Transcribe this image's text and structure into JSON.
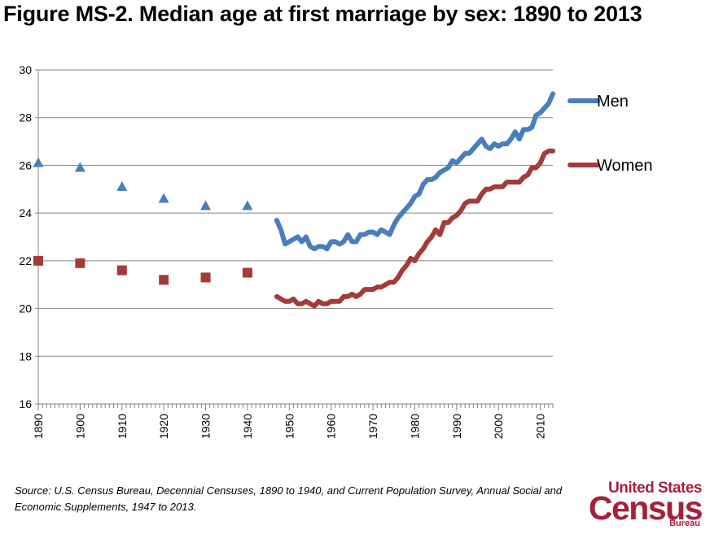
{
  "title": "Figure MS-2.  Median age at first marriage by sex:  1890 to 2013",
  "source": "Source: U.S. Census Bureau, Decennial Censuses, 1890 to 1940, and Current Population Survey, Annual Social and Economic Supplements, 1947 to 2013.",
  "logo": {
    "line1": "United States",
    "line2": "Census",
    "line3": "Bureau",
    "tm": "®"
  },
  "colors": {
    "men": "#4a7ebb",
    "women": "#a33b3b",
    "grid": "#858585",
    "axis": "#858585"
  },
  "chart_data": {
    "type": "line",
    "title": "Figure MS-2.  Median age at first marriage by sex:  1890 to 2013",
    "xlabel": "",
    "ylabel": "",
    "xlim": [
      1890,
      2013
    ],
    "ylim": [
      16,
      30
    ],
    "yticks": [
      16,
      18,
      20,
      22,
      24,
      26,
      28,
      30
    ],
    "xticks": [
      1890,
      1900,
      1910,
      1920,
      1930,
      1940,
      1950,
      1960,
      1970,
      1980,
      1990,
      2000,
      2010
    ],
    "grid": true,
    "legend": "right",
    "series": [
      {
        "name": "Men",
        "census_markers": "triangle",
        "census_points": [
          [
            1890,
            26.1
          ],
          [
            1900,
            25.9
          ],
          [
            1910,
            25.1
          ],
          [
            1920,
            24.6
          ],
          [
            1930,
            24.3
          ],
          [
            1940,
            24.3
          ]
        ],
        "survey_points": [
          [
            1947,
            23.7
          ],
          [
            1948,
            23.3
          ],
          [
            1949,
            22.7
          ],
          [
            1950,
            22.8
          ],
          [
            1951,
            22.9
          ],
          [
            1952,
            23.0
          ],
          [
            1953,
            22.8
          ],
          [
            1954,
            23.0
          ],
          [
            1955,
            22.6
          ],
          [
            1956,
            22.5
          ],
          [
            1957,
            22.6
          ],
          [
            1958,
            22.6
          ],
          [
            1959,
            22.5
          ],
          [
            1960,
            22.8
          ],
          [
            1961,
            22.8
          ],
          [
            1962,
            22.7
          ],
          [
            1963,
            22.8
          ],
          [
            1964,
            23.1
          ],
          [
            1965,
            22.8
          ],
          [
            1966,
            22.8
          ],
          [
            1967,
            23.1
          ],
          [
            1968,
            23.1
          ],
          [
            1969,
            23.2
          ],
          [
            1970,
            23.2
          ],
          [
            1971,
            23.1
          ],
          [
            1972,
            23.3
          ],
          [
            1973,
            23.2
          ],
          [
            1974,
            23.1
          ],
          [
            1975,
            23.5
          ],
          [
            1976,
            23.8
          ],
          [
            1977,
            24.0
          ],
          [
            1978,
            24.2
          ],
          [
            1979,
            24.4
          ],
          [
            1980,
            24.7
          ],
          [
            1981,
            24.8
          ],
          [
            1982,
            25.2
          ],
          [
            1983,
            25.4
          ],
          [
            1984,
            25.4
          ],
          [
            1985,
            25.5
          ],
          [
            1986,
            25.7
          ],
          [
            1987,
            25.8
          ],
          [
            1988,
            25.9
          ],
          [
            1989,
            26.2
          ],
          [
            1990,
            26.1
          ],
          [
            1991,
            26.3
          ],
          [
            1992,
            26.5
          ],
          [
            1993,
            26.5
          ],
          [
            1994,
            26.7
          ],
          [
            1995,
            26.9
          ],
          [
            1996,
            27.1
          ],
          [
            1997,
            26.8
          ],
          [
            1998,
            26.7
          ],
          [
            1999,
            26.9
          ],
          [
            2000,
            26.8
          ],
          [
            2001,
            26.9
          ],
          [
            2002,
            26.9
          ],
          [
            2003,
            27.1
          ],
          [
            2004,
            27.4
          ],
          [
            2005,
            27.1
          ],
          [
            2006,
            27.5
          ],
          [
            2007,
            27.5
          ],
          [
            2008,
            27.6
          ],
          [
            2009,
            28.1
          ],
          [
            2010,
            28.2
          ],
          [
            2011,
            28.4
          ],
          [
            2012,
            28.6
          ],
          [
            2013,
            29.0
          ]
        ]
      },
      {
        "name": "Women",
        "census_markers": "square",
        "census_points": [
          [
            1890,
            22.0
          ],
          [
            1900,
            21.9
          ],
          [
            1910,
            21.6
          ],
          [
            1920,
            21.2
          ],
          [
            1930,
            21.3
          ],
          [
            1940,
            21.5
          ]
        ],
        "survey_points": [
          [
            1947,
            20.5
          ],
          [
            1948,
            20.4
          ],
          [
            1949,
            20.3
          ],
          [
            1950,
            20.3
          ],
          [
            1951,
            20.4
          ],
          [
            1952,
            20.2
          ],
          [
            1953,
            20.2
          ],
          [
            1954,
            20.3
          ],
          [
            1955,
            20.2
          ],
          [
            1956,
            20.1
          ],
          [
            1957,
            20.3
          ],
          [
            1958,
            20.2
          ],
          [
            1959,
            20.2
          ],
          [
            1960,
            20.3
          ],
          [
            1961,
            20.3
          ],
          [
            1962,
            20.3
          ],
          [
            1963,
            20.5
          ],
          [
            1964,
            20.5
          ],
          [
            1965,
            20.6
          ],
          [
            1966,
            20.5
          ],
          [
            1967,
            20.6
          ],
          [
            1968,
            20.8
          ],
          [
            1969,
            20.8
          ],
          [
            1970,
            20.8
          ],
          [
            1971,
            20.9
          ],
          [
            1972,
            20.9
          ],
          [
            1973,
            21.0
          ],
          [
            1974,
            21.1
          ],
          [
            1975,
            21.1
          ],
          [
            1976,
            21.3
          ],
          [
            1977,
            21.6
          ],
          [
            1978,
            21.8
          ],
          [
            1979,
            22.1
          ],
          [
            1980,
            22.0
          ],
          [
            1981,
            22.3
          ],
          [
            1982,
            22.5
          ],
          [
            1983,
            22.8
          ],
          [
            1984,
            23.0
          ],
          [
            1985,
            23.3
          ],
          [
            1986,
            23.1
          ],
          [
            1987,
            23.6
          ],
          [
            1988,
            23.6
          ],
          [
            1989,
            23.8
          ],
          [
            1990,
            23.9
          ],
          [
            1991,
            24.1
          ],
          [
            1992,
            24.4
          ],
          [
            1993,
            24.5
          ],
          [
            1994,
            24.5
          ],
          [
            1995,
            24.5
          ],
          [
            1996,
            24.8
          ],
          [
            1997,
            25.0
          ],
          [
            1998,
            25.0
          ],
          [
            1999,
            25.1
          ],
          [
            2000,
            25.1
          ],
          [
            2001,
            25.1
          ],
          [
            2002,
            25.3
          ],
          [
            2003,
            25.3
          ],
          [
            2004,
            25.3
          ],
          [
            2005,
            25.3
          ],
          [
            2006,
            25.5
          ],
          [
            2007,
            25.6
          ],
          [
            2008,
            25.9
          ],
          [
            2009,
            25.9
          ],
          [
            2010,
            26.1
          ],
          [
            2011,
            26.5
          ],
          [
            2012,
            26.6
          ],
          [
            2013,
            26.6
          ]
        ]
      }
    ]
  }
}
